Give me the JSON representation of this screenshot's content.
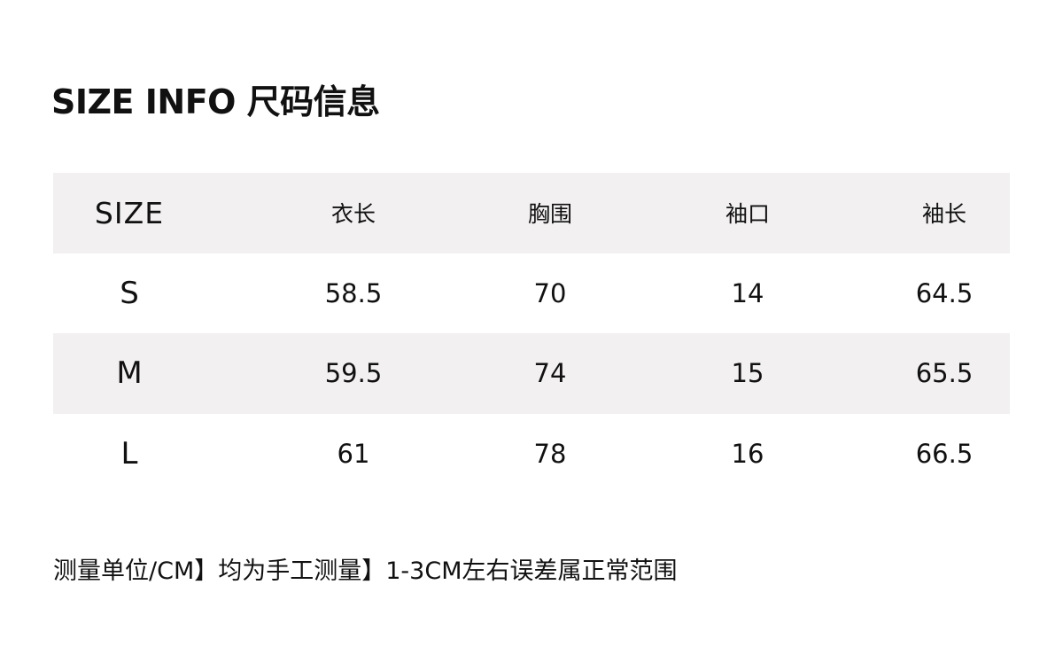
{
  "title": "SIZE INFO 尺码信息",
  "table": {
    "headers": [
      "SIZE",
      "衣长",
      "胸围",
      "袖口",
      "袖长"
    ],
    "rows": [
      [
        "S",
        "58.5",
        "70",
        "14",
        "64.5"
      ],
      [
        "M",
        "59.5",
        "74",
        "15",
        "65.5"
      ],
      [
        "L",
        "61",
        "78",
        "16",
        "66.5"
      ]
    ]
  },
  "note": "测量单位/CM】均为手工测量】1-3CM左右误差属正常范围",
  "colors": {
    "stripe": "#f2f0f1",
    "text": "#111111"
  }
}
